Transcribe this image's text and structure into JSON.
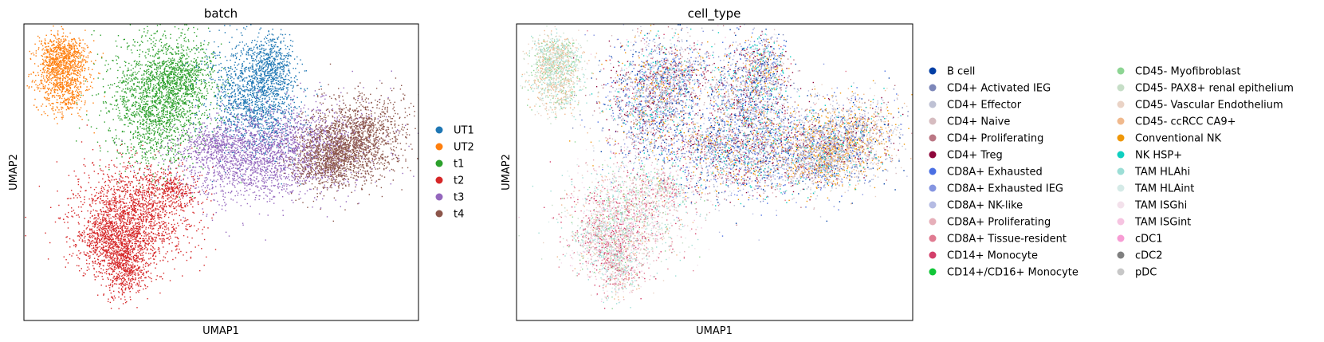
{
  "chart_data": [
    {
      "type": "scatter",
      "title": "batch",
      "xlabel": "UMAP1",
      "ylabel": "UMAP2",
      "grid": false,
      "ticks": false,
      "legend_position": "right",
      "series": [
        {
          "name": "UT1",
          "color": "#1f77b4"
        },
        {
          "name": "UT2",
          "color": "#ff7f0e"
        },
        {
          "name": "t1",
          "color": "#2ca02c"
        },
        {
          "name": "t2",
          "color": "#d62728"
        },
        {
          "name": "t3",
          "color": "#9467bd"
        },
        {
          "name": "t4",
          "color": "#8c564b"
        }
      ]
    },
    {
      "type": "scatter",
      "title": "cell_type",
      "xlabel": "UMAP1",
      "ylabel": "UMAP2",
      "grid": false,
      "ticks": false,
      "legend_position": "right",
      "legend_columns": 2,
      "series": [
        {
          "name": "B cell",
          "color": "#023fa5"
        },
        {
          "name": "CD4+ Activated IEG",
          "color": "#7d87b9"
        },
        {
          "name": "CD4+ Effector",
          "color": "#bec1d4"
        },
        {
          "name": "CD4+ Naive",
          "color": "#d6bcc0"
        },
        {
          "name": "CD4+ Proliferating",
          "color": "#bb7784"
        },
        {
          "name": "CD4+ Treg",
          "color": "#8e063b"
        },
        {
          "name": "CD8A+ Exhausted",
          "color": "#4a6fe3"
        },
        {
          "name": "CD8A+ Exhausted IEG",
          "color": "#8595e1"
        },
        {
          "name": "CD8A+ NK-like",
          "color": "#b5bbe3"
        },
        {
          "name": "CD8A+ Proliferating",
          "color": "#e6afb9"
        },
        {
          "name": "CD8A+ Tissue-resident",
          "color": "#e07b91"
        },
        {
          "name": "CD14+ Monocyte",
          "color": "#d33f6a"
        },
        {
          "name": "CD14+/CD16+ Monocyte",
          "color": "#11c638"
        },
        {
          "name": "CD45- Myofibroblast",
          "color": "#8dd593"
        },
        {
          "name": "CD45- PAX8+ renal epithelium",
          "color": "#c6dec7"
        },
        {
          "name": "CD45- Vascular Endothelium",
          "color": "#ead3c6"
        },
        {
          "name": "CD45- ccRCC CA9+",
          "color": "#f0b98d"
        },
        {
          "name": "Conventional NK",
          "color": "#ef9708"
        },
        {
          "name": "NK HSP+",
          "color": "#0fcfc0"
        },
        {
          "name": "TAM HLAhi",
          "color": "#9cded6"
        },
        {
          "name": "TAM HLAint",
          "color": "#d5eae7"
        },
        {
          "name": "TAM ISGhi",
          "color": "#f3e1eb"
        },
        {
          "name": "TAM ISGint",
          "color": "#f6c4e1"
        },
        {
          "name": "cDC1",
          "color": "#f79cd4"
        },
        {
          "name": "cDC2",
          "color": "#7f7f7f"
        },
        {
          "name": "pDC",
          "color": "#c7c7c7"
        }
      ]
    }
  ]
}
